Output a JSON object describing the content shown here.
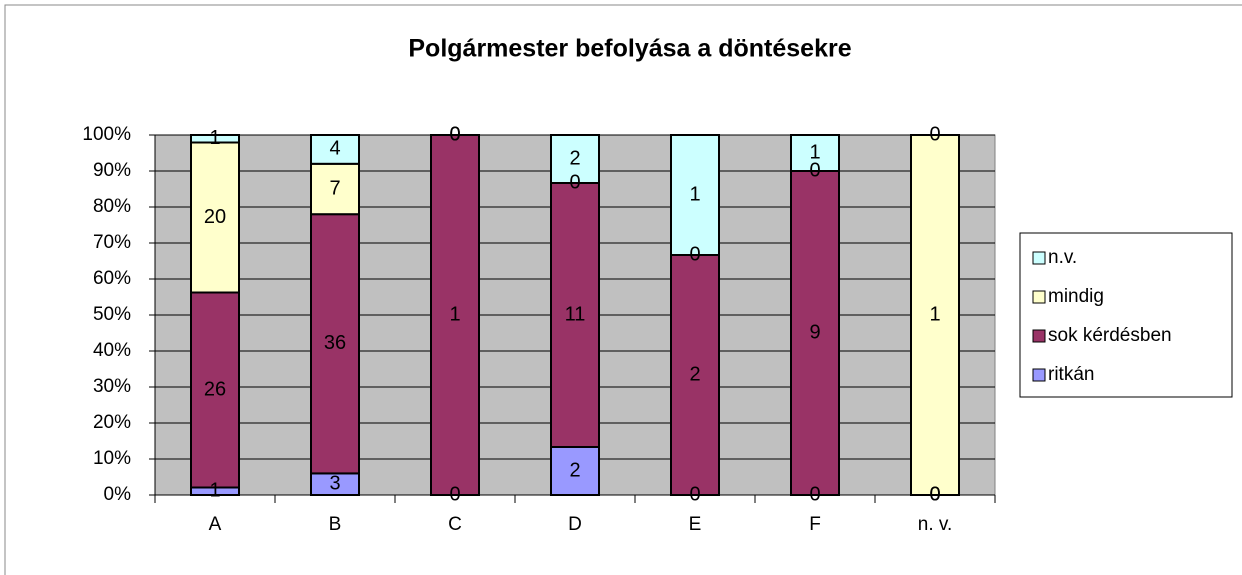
{
  "chart_data": {
    "type": "bar",
    "stacking": "percent",
    "title": "Polgármester befolyása a döntésekre",
    "categories": [
      "A",
      "B",
      "C",
      "D",
      "E",
      "F",
      "n. v."
    ],
    "series": [
      {
        "name": "ritkán",
        "color": "#9999ff",
        "values": [
          1,
          3,
          0,
          2,
          0,
          0,
          0
        ]
      },
      {
        "name": "sok kérdésben",
        "color": "#993366",
        "values": [
          26,
          36,
          1,
          11,
          2,
          9,
          0
        ]
      },
      {
        "name": "mindig",
        "color": "#ffffcc",
        "values": [
          20,
          7,
          0,
          0,
          0,
          0,
          1
        ]
      },
      {
        "name": "n.v.",
        "color": "#ccffff",
        "values": [
          1,
          4,
          0,
          2,
          1,
          1,
          0
        ]
      }
    ],
    "ylim": [
      0,
      100
    ],
    "yticks": [
      {
        "value": 0,
        "label": "0%"
      },
      {
        "value": 10,
        "label": "10%"
      },
      {
        "value": 20,
        "label": "20%"
      },
      {
        "value": 30,
        "label": "30%"
      },
      {
        "value": 40,
        "label": "40%"
      },
      {
        "value": 50,
        "label": "50%"
      },
      {
        "value": 60,
        "label": "60%"
      },
      {
        "value": 70,
        "label": "70%"
      },
      {
        "value": 80,
        "label": "80%"
      },
      {
        "value": 90,
        "label": "90%"
      },
      {
        "value": 100,
        "label": "100%"
      }
    ],
    "grid": true,
    "plot_background": "#c0c0c0",
    "legend": "right"
  }
}
